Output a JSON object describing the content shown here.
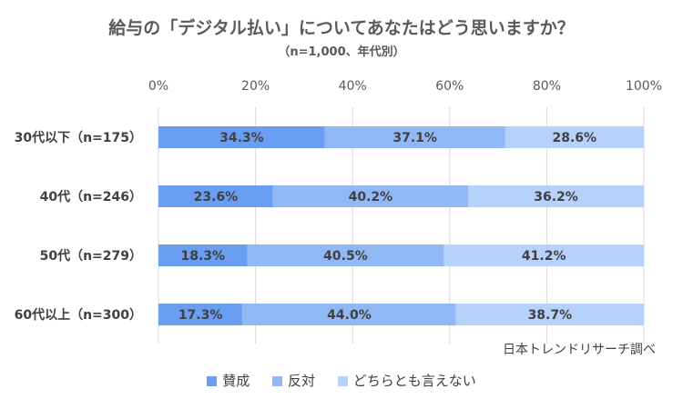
{
  "chart_data": {
    "type": "bar",
    "orientation": "horizontal",
    "stacked": true,
    "percent": true,
    "title": "給与の「デジタル払い」についてあなたはどう思いますか？",
    "subtitle": "（n=1,000、年代別）",
    "categories": [
      "30代以下（n=175）",
      "40代（n=246）",
      "50代（n=279）",
      "60代以上（n=300）"
    ],
    "series": [
      {
        "name": "賛成",
        "values": [
          34.3,
          23.6,
          18.3,
          17.3
        ],
        "color": "#6a9ef2"
      },
      {
        "name": "反対",
        "values": [
          37.1,
          40.2,
          40.5,
          44.0
        ],
        "color": "#90b8f5"
      },
      {
        "name": "どちらとも言えない",
        "values": [
          28.6,
          36.2,
          41.2,
          38.7
        ],
        "color": "#b6d1fa"
      }
    ],
    "x_ticks": [
      "0%",
      "20%",
      "40%",
      "60%",
      "80%",
      "100%"
    ],
    "xlim": [
      0,
      100
    ],
    "grid": true,
    "legend_position": "bottom",
    "source": "日本トレンドリサーチ調べ"
  }
}
